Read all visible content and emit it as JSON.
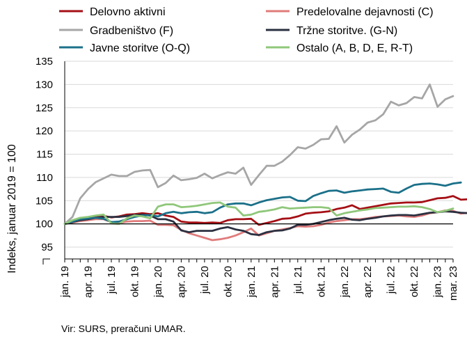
{
  "chart_data": {
    "type": "line",
    "ylabel": "Indeks, januar 2019 = 100",
    "ylim": [
      95,
      135
    ],
    "yticks": [
      95,
      100,
      105,
      110,
      115,
      120,
      125,
      130,
      135
    ],
    "grid": "horizontal",
    "legend_position": "top",
    "baseline": 100,
    "x_tick_labels": [
      "jan. 19",
      "apr. 19",
      "jul. 19",
      "okt. 19",
      "jan. 20",
      "apr. 20",
      "jul. 20",
      "okt. 20",
      "jan. 21",
      "apr. 21",
      "jul. 21",
      "okt. 21",
      "jan. 22",
      "apr. 22",
      "jul. 22",
      "okt. 22",
      "jan. 23",
      "mar. 23"
    ],
    "x_tick_month_index": [
      0,
      3,
      6,
      9,
      12,
      15,
      18,
      21,
      24,
      27,
      30,
      33,
      36,
      39,
      42,
      45,
      48,
      50
    ],
    "series": [
      {
        "name": "Delovno aktivni",
        "color": "#a50f15",
        "values": [
          100,
          100.5,
          100.8,
          101,
          101.5,
          101.7,
          101.4,
          101.6,
          102,
          102.1,
          102.3,
          102.1,
          102.3,
          101.8,
          101.5,
          100.5,
          100.3,
          100.3,
          100.2,
          100.3,
          100.2,
          100.8,
          101,
          101,
          101.1,
          99.8,
          100.2,
          100.6,
          101.1,
          101.2,
          101.6,
          102.2,
          102.4,
          102.5,
          102.7,
          103.2,
          103.5,
          104,
          103.2,
          103.5,
          103.8,
          104.1,
          104.4,
          104.5,
          104.6,
          104.6,
          104.7,
          105.1,
          105.5,
          105.6,
          106,
          105.2,
          105.3,
          105.7
        ]
      },
      {
        "name": "Predelovalne dejavnosti (C)",
        "color": "#e07b7b",
        "values": [
          100,
          100.3,
          100.6,
          100.8,
          101,
          101,
          100.4,
          100.2,
          100.5,
          100.6,
          100.6,
          100.7,
          99.8,
          99.8,
          99.7,
          98.7,
          98,
          97.5,
          97,
          96.5,
          96.7,
          97,
          97.5,
          98.2,
          99,
          97.5,
          98,
          98.5,
          98.8,
          99.1,
          99.5,
          99.4,
          99.5,
          99.8,
          100.3,
          100.6,
          100.8,
          101,
          101,
          101.2,
          101.5,
          101.6,
          101.7,
          101.8,
          101.6,
          101.5,
          101.8,
          102.3,
          102.5,
          102.9,
          102.8,
          102.2,
          102.4,
          102.6
        ]
      },
      {
        "name": "Gradbeništvo (F)",
        "color": "#a6a6a6",
        "values": [
          100,
          101.5,
          105.5,
          107.5,
          109,
          109.8,
          110.6,
          110.3,
          110.3,
          111.2,
          111.5,
          111.6,
          107.9,
          108.8,
          110.4,
          109.4,
          109.6,
          109.9,
          110.8,
          109.8,
          110.5,
          111.1,
          110.8,
          112.1,
          108.4,
          110.5,
          112.5,
          112.5,
          113.4,
          114.8,
          116.5,
          116.2,
          117,
          118.2,
          118.3,
          121,
          117.5,
          119.2,
          120.3,
          121.8,
          122.3,
          123.6,
          126.3,
          125.5,
          126,
          127.3,
          127,
          130,
          125.2,
          126.8,
          127.5
        ]
      },
      {
        "name": "Tržne storitve. (G-N)",
        "color": "#2b3040",
        "values": [
          100,
          100.4,
          100.8,
          101,
          101.3,
          101.5,
          101.5,
          101.5,
          101.7,
          101.9,
          102,
          101.8,
          101,
          101,
          100.5,
          98.6,
          98.2,
          98.5,
          98.5,
          98.5,
          99,
          99.3,
          98.8,
          98.5,
          97.8,
          97.6,
          98.2,
          98.5,
          98.6,
          99,
          99.8,
          99.8,
          100,
          100.4,
          100.8,
          101.1,
          101.3,
          100.9,
          100.8,
          101.1,
          101.3,
          101.6,
          101.8,
          101.9,
          101.9,
          101.8,
          102.1,
          102.4,
          102.5,
          102.7,
          102.6,
          102.4,
          102.3,
          102.4
        ]
      },
      {
        "name": "Javne storitve (O-Q)",
        "color": "#1b7089",
        "values": [
          100,
          100.5,
          101,
          101.2,
          101.3,
          101.1,
          100.4,
          100.5,
          101,
          101.5,
          101.8,
          101.9,
          101.6,
          102.3,
          102.6,
          102.3,
          102.5,
          102.6,
          102.3,
          102.5,
          103.5,
          104.2,
          104.4,
          104.4,
          104,
          104.6,
          105.1,
          105.4,
          105.7,
          105.8,
          105,
          104.9,
          106,
          106.6,
          107.1,
          107.2,
          106.7,
          107,
          107.2,
          107.4,
          107.5,
          107.6,
          106.9,
          106.7,
          107.6,
          108.4,
          108.6,
          108.7,
          108.5,
          108.2,
          108.7,
          108.9
        ]
      },
      {
        "name": "Ostalo (A, B, D, E, R-T)",
        "color": "#8fc77a",
        "values": [
          100,
          100.8,
          101.3,
          101.5,
          101.8,
          102,
          100.1,
          100,
          101.2,
          101.8,
          101.6,
          101.2,
          103.7,
          104.2,
          104.2,
          103.6,
          103.7,
          103.9,
          104.2,
          104.5,
          104.6,
          103.7,
          103.5,
          101.8,
          102,
          102.6,
          102.8,
          103.1,
          103.6,
          103.3,
          103.4,
          103.5,
          103.6,
          103.6,
          103.4,
          101.8,
          102.3,
          102.6,
          102.9,
          103.1,
          103.4,
          103.5,
          103.6,
          103.7,
          103.7,
          103.8,
          103.6,
          103.2,
          102.5,
          102.8,
          103.3
        ]
      }
    ]
  },
  "source": "Vir: SURS, preračuni UMAR."
}
